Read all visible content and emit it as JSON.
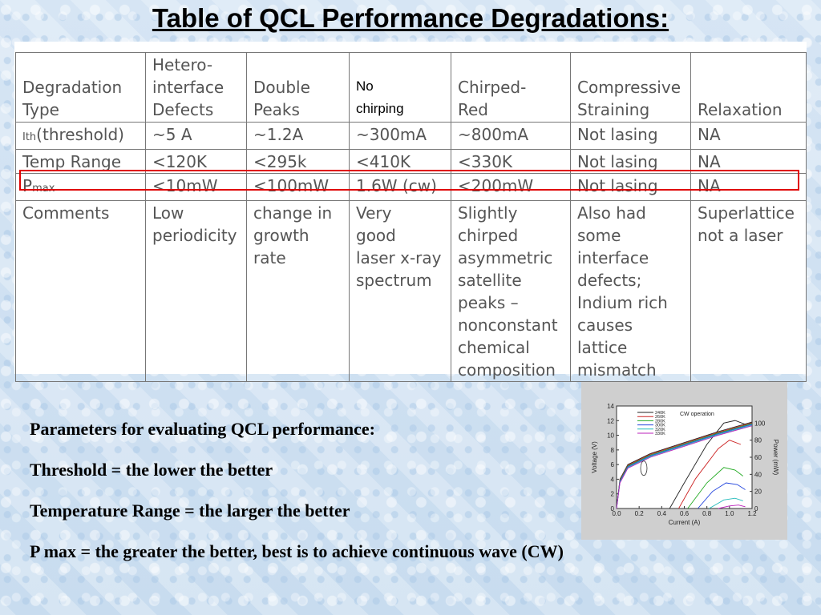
{
  "title": "Table of QCL Performance Degradations:",
  "table": {
    "header": {
      "col0": [
        "Degradation",
        "Type"
      ],
      "col1": [
        "Hetero-",
        "interface",
        "Defects"
      ],
      "col2": [
        "Double",
        "Peaks"
      ],
      "col3_note": [
        "No",
        "chirping"
      ],
      "col4": [
        "Chirped-",
        "Red"
      ],
      "col5": [
        "Compressive",
        "Straining"
      ],
      "col6": [
        "Relaxation"
      ]
    },
    "rows": [
      {
        "label_main": "Ith",
        "label_rest": "(threshold)",
        "cells": [
          "~5 A",
          "~1.2A",
          "~300mA",
          "~800mA",
          "Not lasing",
          "NA"
        ]
      },
      {
        "label_main": "Temp Range",
        "label_rest": "",
        "cells": [
          "<120K",
          "<295k",
          "<410K",
          "<330K",
          "Not lasing",
          "NA"
        ]
      },
      {
        "label_main": "P",
        "label_sub": "max",
        "cells": [
          "<10mW",
          "<100mW",
          "1.6W (cw)",
          "<200mW",
          "Not lasing",
          "NA"
        ]
      },
      {
        "label_main": "Comments",
        "cells": [
          [
            "Low",
            "periodicity"
          ],
          [
            "change in",
            "growth",
            "rate"
          ],
          [
            "Very",
            "good",
            "laser x-ray",
            "spectrum"
          ],
          [
            "Slightly",
            "chirped",
            "asymmetric",
            "satellite",
            "peaks –",
            "nonconstant",
            "chemical",
            "composition"
          ],
          [
            "Also had",
            "some",
            "interface",
            "defects;",
            "Indium rich",
            "causes",
            "lattice",
            "mismatch"
          ],
          [
            "Superlattice",
            "not a laser"
          ]
        ]
      }
    ]
  },
  "params": {
    "heading": "Parameters for evaluating QCL performance:",
    "threshold": "Threshold = the lower the better",
    "temperature": "Temperature Range = the larger the better",
    "pmax": "P max =  the greater the better, best is to achieve continuous wave (CW)"
  },
  "chart_data": {
    "type": "line",
    "annotation": "CW operation",
    "xlabel": "Current (A)",
    "ylabel": "Voltage (V)",
    "y2label": "Power (mW)",
    "xlim": [
      0,
      1.2
    ],
    "ylim": [
      0,
      14
    ],
    "y2lim": [
      0,
      120
    ],
    "xticks": [
      "0.0",
      "0.2",
      "0.4",
      "0.6",
      "0.8",
      "1.0",
      "1.2"
    ],
    "yticks": [
      "0",
      "2",
      "4",
      "6",
      "8",
      "10",
      "12",
      "14"
    ],
    "y2ticks": [
      "0",
      "20",
      "40",
      "60",
      "80",
      "100"
    ],
    "series": [
      {
        "name": "240K",
        "color": "#222222",
        "voltage": [
          [
            0,
            0
          ],
          [
            0.03,
            4
          ],
          [
            0.1,
            6
          ],
          [
            0.3,
            7.5
          ],
          [
            0.6,
            9
          ],
          [
            0.9,
            10.5
          ],
          [
            1.2,
            11.8
          ]
        ],
        "power": [
          [
            0.47,
            0
          ],
          [
            0.6,
            30
          ],
          [
            0.8,
            75
          ],
          [
            0.95,
            100
          ],
          [
            1.05,
            103
          ],
          [
            1.15,
            98
          ]
        ]
      },
      {
        "name": "260K",
        "color": "#cc2222",
        "voltage": [
          [
            0,
            0
          ],
          [
            0.03,
            3.9
          ],
          [
            0.1,
            5.9
          ],
          [
            0.3,
            7.4
          ],
          [
            0.6,
            8.9
          ],
          [
            0.9,
            10.4
          ],
          [
            1.2,
            11.7
          ]
        ],
        "power": [
          [
            0.55,
            0
          ],
          [
            0.7,
            35
          ],
          [
            0.9,
            70
          ],
          [
            1.0,
            80
          ],
          [
            1.1,
            75
          ]
        ]
      },
      {
        "name": "280K",
        "color": "#22aa22",
        "voltage": [
          [
            0,
            0
          ],
          [
            0.03,
            3.8
          ],
          [
            0.1,
            5.8
          ],
          [
            0.3,
            7.3
          ],
          [
            0.6,
            8.8
          ],
          [
            0.9,
            10.3
          ],
          [
            1.2,
            11.6
          ]
        ],
        "power": [
          [
            0.63,
            0
          ],
          [
            0.8,
            30
          ],
          [
            0.95,
            48
          ],
          [
            1.05,
            45
          ],
          [
            1.12,
            38
          ]
        ]
      },
      {
        "name": "300K",
        "color": "#2244dd",
        "voltage": [
          [
            0,
            0
          ],
          [
            0.03,
            3.7
          ],
          [
            0.1,
            5.7
          ],
          [
            0.3,
            7.2
          ],
          [
            0.6,
            8.7
          ],
          [
            0.9,
            10.2
          ],
          [
            1.2,
            11.5
          ]
        ],
        "power": [
          [
            0.72,
            0
          ],
          [
            0.85,
            20
          ],
          [
            0.97,
            30
          ],
          [
            1.07,
            28
          ],
          [
            1.14,
            22
          ]
        ]
      },
      {
        "name": "320K",
        "color": "#22bbbb",
        "voltage": [
          [
            0,
            0
          ],
          [
            0.03,
            3.6
          ],
          [
            0.1,
            5.6
          ],
          [
            0.3,
            7.1
          ],
          [
            0.6,
            8.6
          ],
          [
            0.9,
            10.1
          ],
          [
            1.2,
            11.4
          ]
        ],
        "power": [
          [
            0.82,
            0
          ],
          [
            0.95,
            10
          ],
          [
            1.05,
            12
          ],
          [
            1.12,
            9
          ]
        ]
      },
      {
        "name": "330K",
        "color": "#bb22bb",
        "voltage": [
          [
            0,
            0
          ],
          [
            0.03,
            3.5
          ],
          [
            0.1,
            5.5
          ],
          [
            0.3,
            7.0
          ],
          [
            0.6,
            8.5
          ],
          [
            0.9,
            10.0
          ],
          [
            1.2,
            11.3
          ]
        ],
        "power": [
          [
            0.9,
            0
          ],
          [
            1.0,
            3
          ],
          [
            1.08,
            4
          ],
          [
            1.14,
            2
          ]
        ]
      }
    ]
  }
}
